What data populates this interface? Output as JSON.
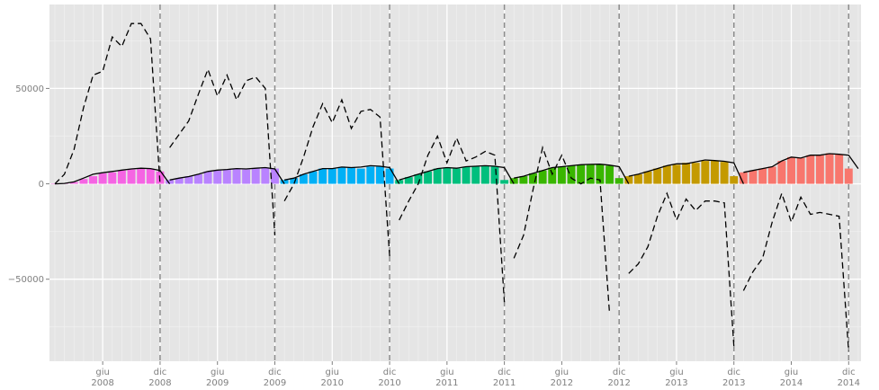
{
  "chart_data": {
    "type": "bar",
    "title": "",
    "xlabel": "",
    "ylabel": "",
    "ylim": [
      -93000,
      94000
    ],
    "grid": true,
    "legend": "none",
    "background_color": "#e5e5e5",
    "y_ticks": [
      {
        "value": 50000,
        "label": "50000"
      },
      {
        "value": 0,
        "label": "0"
      },
      {
        "value": -50000,
        "label": "−50000"
      }
    ],
    "x_ticks": [
      {
        "month": 5,
        "line1": "giu",
        "line2": "2008"
      },
      {
        "month": 11,
        "line1": "dic",
        "line2": "2008"
      },
      {
        "month": 17,
        "line1": "giu",
        "line2": "2009"
      },
      {
        "month": 23,
        "line1": "dic",
        "line2": "2009"
      },
      {
        "month": 29,
        "line1": "giu",
        "line2": "2010"
      },
      {
        "month": 35,
        "line1": "dic",
        "line2": "2010"
      },
      {
        "month": 41,
        "line1": "giu",
        "line2": "2011"
      },
      {
        "month": 47,
        "line1": "dic",
        "line2": "2011"
      },
      {
        "month": 53,
        "line1": "giu",
        "line2": "2012"
      },
      {
        "month": 59,
        "line1": "dic",
        "line2": "2012"
      },
      {
        "month": 65,
        "line1": "giu",
        "line2": "2013"
      },
      {
        "month": 71,
        "line1": "dic",
        "line2": "2013"
      },
      {
        "month": 77,
        "line1": "giu",
        "line2": "2014"
      },
      {
        "month": 83,
        "line1": "dic",
        "line2": "2014"
      }
    ],
    "year_boundaries": [
      11,
      23,
      35,
      47,
      59,
      71,
      83
    ],
    "series": [
      {
        "year": "2008",
        "color": "#f564e3",
        "bars": [
          0,
          200,
          900,
          2500,
          4000,
          5500,
          6000,
          7000,
          7500,
          8000,
          7800,
          6500
        ],
        "solid_line": [
          0,
          200,
          1000,
          3000,
          5000,
          5800,
          6500,
          7200,
          7800,
          8200,
          8000,
          7000,
          0
        ],
        "dashed_line": [
          0,
          5000,
          18000,
          40000,
          57000,
          59000,
          77000,
          72000,
          84000,
          84000,
          76000,
          0
        ]
      },
      {
        "year": "2009",
        "color": "#b983ff",
        "bars": [
          2000,
          3000,
          4000,
          5000,
          6500,
          7000,
          7500,
          8000,
          7500,
          8000,
          8500,
          8000
        ],
        "solid_line": [
          2000,
          3000,
          3800,
          5000,
          6500,
          7200,
          7500,
          8000,
          7800,
          8200,
          8500,
          7800,
          0
        ],
        "dashed_line": [
          19000,
          26000,
          33000,
          47000,
          60000,
          46000,
          57000,
          44000,
          54000,
          56000,
          50000,
          -27000
        ]
      },
      {
        "year": "2010",
        "color": "#00b0f6",
        "bars": [
          2000,
          3000,
          5000,
          6500,
          8000,
          8000,
          8500,
          8500,
          8000,
          9000,
          9000,
          8000
        ],
        "solid_line": [
          2000,
          3000,
          5000,
          6500,
          8000,
          8000,
          8800,
          8500,
          8800,
          9500,
          9200,
          8500,
          0
        ],
        "dashed_line": [
          -9000,
          0,
          14000,
          30000,
          42000,
          32000,
          44000,
          29000,
          38000,
          39000,
          35000,
          -38000
        ]
      },
      {
        "year": "2011",
        "color": "#00bf7d",
        "bars": [
          2000,
          3500,
          5000,
          6500,
          8000,
          8500,
          8000,
          9000,
          9000,
          9500,
          9000,
          2000
        ],
        "solid_line": [
          2000,
          3500,
          5000,
          6500,
          8000,
          8500,
          8200,
          9000,
          9200,
          9500,
          9200,
          8500,
          0
        ],
        "dashed_line": [
          -19000,
          -9000,
          0,
          15000,
          25000,
          11000,
          24000,
          12000,
          14000,
          17000,
          15000,
          -62000
        ]
      },
      {
        "year": "2012",
        "color": "#39b600",
        "bars": [
          3000,
          4000,
          5500,
          7000,
          8500,
          9000,
          9500,
          10000,
          10000,
          10000,
          9500,
          3000
        ],
        "solid_line": [
          3000,
          4000,
          5500,
          7000,
          8500,
          9000,
          9500,
          10000,
          10200,
          10300,
          9800,
          9000,
          0
        ],
        "dashed_line": [
          -39000,
          -27000,
          -3000,
          19000,
          5000,
          15000,
          3000,
          0,
          3000,
          2000,
          -68000
        ]
      },
      {
        "year": "2013",
        "color": "#c49a00",
        "bars": [
          4000,
          5000,
          6500,
          8000,
          9500,
          10000,
          11000,
          11000,
          12000,
          12000,
          11500,
          4000
        ],
        "solid_line": [
          4000,
          5000,
          6500,
          8000,
          9500,
          10500,
          10500,
          11500,
          12500,
          12200,
          11800,
          11000,
          0
        ],
        "dashed_line": [
          -47000,
          -42000,
          -33000,
          -17000,
          -5000,
          -19000,
          -8000,
          -14000,
          -9000,
          -9000,
          -10000,
          -85000
        ]
      },
      {
        "year": "2014",
        "color": "#f8766d",
        "bars": [
          6000,
          7000,
          8000,
          9000,
          12000,
          14000,
          13500,
          15000,
          15000,
          16000,
          15500,
          8000
        ],
        "solid_line": [
          6000,
          7000,
          8000,
          9000,
          12000,
          14000,
          13500,
          15000,
          15000,
          15800,
          15500,
          15000,
          8000
        ],
        "dashed_line": [
          -56000,
          -46000,
          -39000,
          -20000,
          -5000,
          -20000,
          -7000,
          -16000,
          -15000,
          -16000,
          -17000,
          -88000
        ]
      }
    ]
  }
}
